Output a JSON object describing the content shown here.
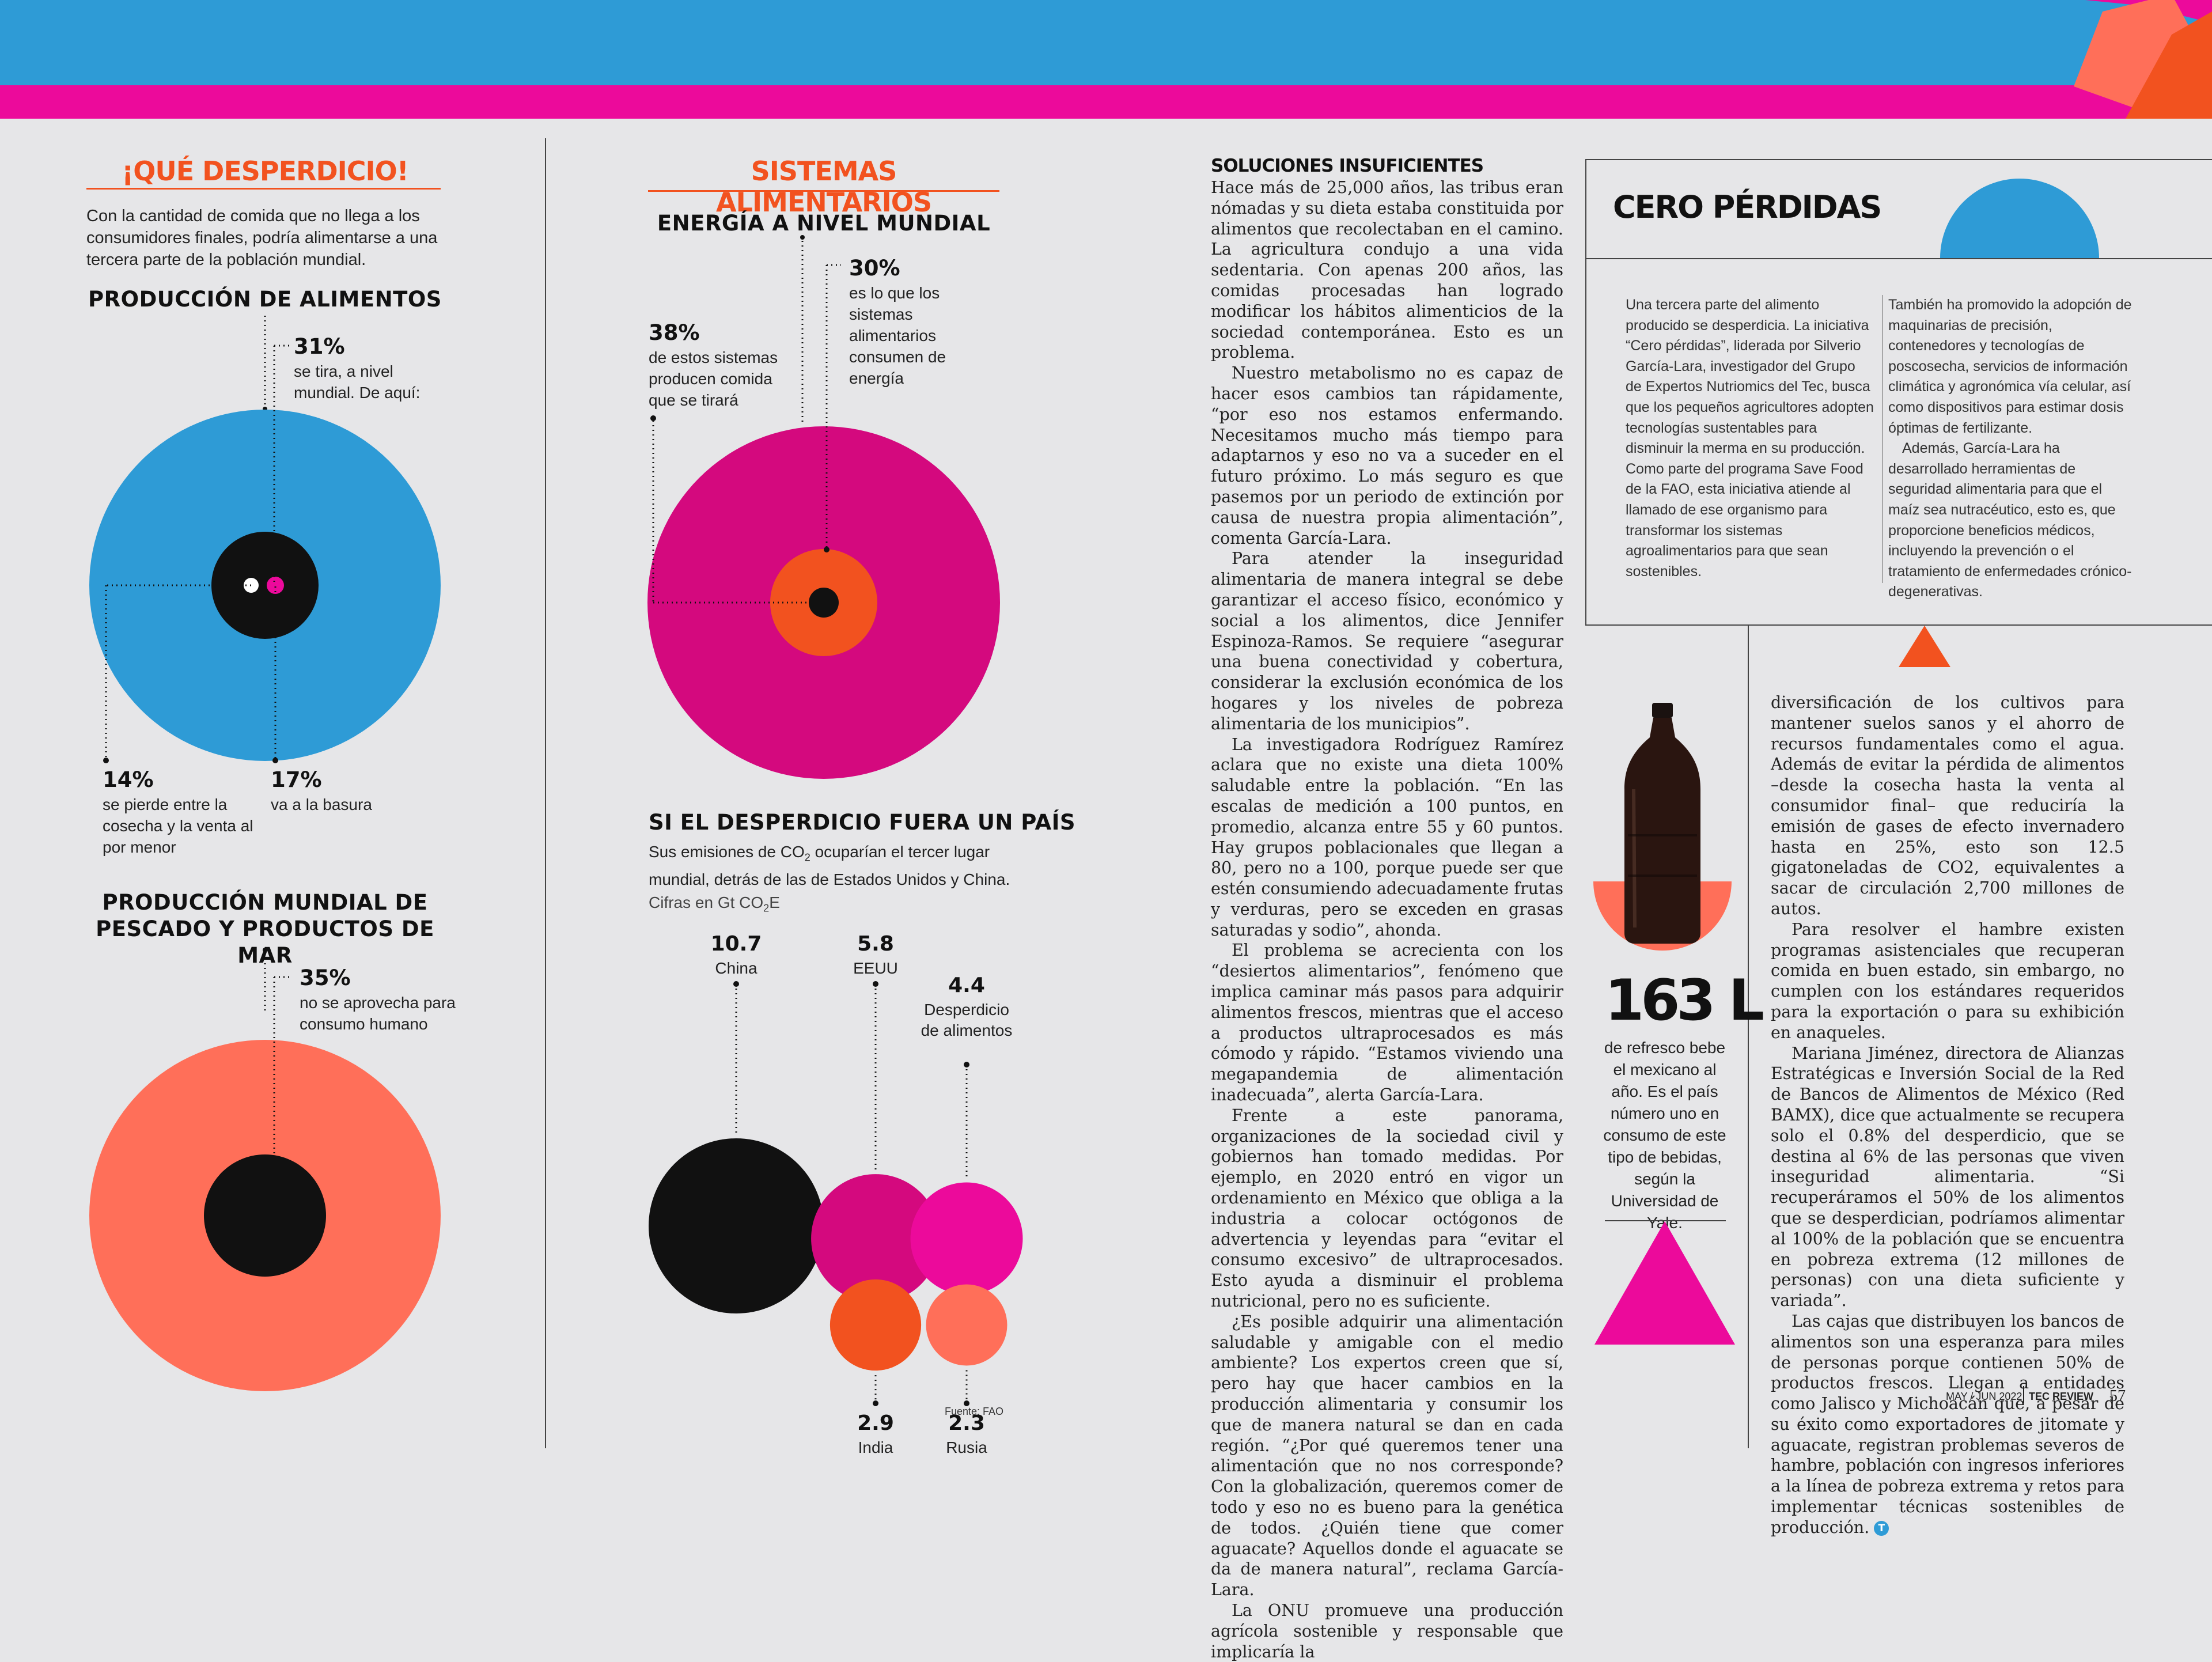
{
  "colors": {
    "blue": "#2e9bd6",
    "pink": "#ec0a9b",
    "orange": "#f2521f",
    "salmon": "#ff6f59",
    "black": "#111111"
  },
  "col1": {
    "title": "¡QUÉ DESPERDICIO!",
    "intro": "Con la cantidad de comida que no llega a los consumidores finales, podría alimentarse a una tercera parte de la población mundial.",
    "food": {
      "heading": "PRODUCCIÓN DE ALIMENTOS",
      "a_pct": "31%",
      "a_text": "se tira, a nivel mundial. De aquí:",
      "b_pct": "14%",
      "b_text": "se pierde entre la cosecha y la venta al por menor",
      "c_pct": "17%",
      "c_text": "va a la basura"
    },
    "fish": {
      "heading": "PRODUCCIÓN MUNDIAL DE PESCADO Y PRODUCTOS DE MAR",
      "pct": "35%",
      "text": "no se aprovecha para consumo humano"
    }
  },
  "col2": {
    "title": "SISTEMAS ALIMENTARIOS",
    "energy": {
      "heading": "ENERGÍA A NIVEL MUNDIAL",
      "a_pct": "30%",
      "a_text": "es lo que los sistemas alimentarios consumen de energía",
      "b_pct": "38%",
      "b_text": "de estos sistemas producen comida que se tirará"
    },
    "country": {
      "heading": "SI EL DESPERDICIO FUERA UN PAÍS",
      "sub_a": "Sus emisiones de CO",
      "sub_sub": "2",
      "sub_b": " ocuparían el tercer lugar mundial, detrás de las de Estados Unidos y China.",
      "unit_a": "Cifras en Gt CO",
      "unit_sub": "2",
      "unit_b": "E",
      "source": "Fuente: FAO"
    }
  },
  "chart_data": {
    "type": "bubble",
    "unit": "Gt CO2E",
    "categories": [
      "China",
      "EEUU",
      "Desperdicio de alimentos",
      "India",
      "Rusia"
    ],
    "values": [
      10.7,
      5.8,
      4.4,
      2.9,
      2.3
    ],
    "labels": [
      "10.7",
      "5.8",
      "4.4",
      "2.9",
      "2.3"
    ],
    "colors": [
      "#111111",
      "#d4097e",
      "#ec0a9b",
      "#f2521f",
      "#ff6f59"
    ]
  },
  "col3": {
    "title": "SOLUCIONES INSUFICIENTES",
    "paragraphs": [
      "Hace más de 25,000 años, las tribus eran nómadas y su dieta estaba constituida por alimentos que recolectaban en el camino. La agricultura condujo a una vida sedentaria. Con apenas 200 años, las comidas procesadas han logrado modificar los hábitos alimenticios de la sociedad contemporánea. Esto es un problema.",
      "Nuestro metabolismo no es capaz de hacer esos cambios tan rápidamente, “por eso nos estamos enfermando. Necesitamos mucho más tiempo para adaptarnos y eso no va a suceder en el futuro próximo. Lo más seguro es que pasemos por un periodo de extinción por causa de nuestra propia alimentación”, comenta García-Lara.",
      "Para atender la inseguridad alimentaria de manera integral se debe garantizar el acceso físico, económico y social a los alimentos, dice Jennifer Espinoza-Ramos. Se requiere “asegurar una buena conectividad y cobertura, considerar la exclusión económica de los hogares y los niveles de pobreza alimentaria de los municipios”.",
      "La investigadora Rodríguez Ramírez aclara que no existe una dieta 100% saludable entre la población. “En las escalas de medición a 100 puntos, en promedio, alcanza entre 55 y 60 puntos. Hay grupos poblacionales que llegan a 80, pero no a 100, porque puede ser que estén consumiendo adecuadamente frutas y verduras, pero se exceden en grasas saturadas y sodio”, ahonda.",
      "El problema se acrecienta con los “desiertos alimentarios”, fenómeno que implica caminar más pasos para adquirir alimentos frescos, mientras que el acceso a productos ultraprocesados es más cómodo y rápido. “Estamos viviendo una megapandemia de alimentación inadecuada”, alerta García-Lara.",
      "Frente a este panorama, organizaciones de la sociedad civil y gobiernos han tomado medidas. Por ejemplo, en 2020 entró en vigor un ordenamiento en México que obliga a la industria a colocar octógonos de advertencia y leyendas para “evitar el consumo excesivo” de ultraprocesados. Esto ayuda a disminuir el problema nutricional, pero no es suficiente.",
      "¿Es posible adquirir una alimentación saludable y amigable con el medio ambiente? Los expertos creen que sí, pero hay que hacer cambios en la producción alimentaria y consumir los que de manera natural se dan en cada región. “¿Por qué queremos tener una alimentación que no nos corresponde? Con la globalización, queremos comer de todo y eso no es bueno para la genética de todos. ¿Quién tiene que comer aguacate? Aquellos donde el aguacate se da de manera natural”, reclama García-Lara.",
      "La ONU promueve una producción agrícola sostenible y responsable que implicaría la"
    ]
  },
  "box": {
    "title": "CERO PÉRDIDAS",
    "left_text": "Una tercera parte del alimento producido se desperdicia. La iniciativa “Cero pérdidas”, liderada por Silverio García-Lara, investigador del Grupo de Expertos Nutriomics del Tec, busca que los pequeños agricultores adopten tecnologías sustentables para disminuir la merma en su producción. Como parte del programa Save Food de la FAO, esta iniciativa atiende al llamado de ese organismo para transformar los sistemas agroalimentarios para que sean sostenibles.",
    "right_p1": "También ha promovido la adopción de maquinarias de precisión, contenedores y tecnologías de poscosecha, servicios de información climática y agronómica vía celular, así como dispositivos para estimar dosis óptimas de fertilizante.",
    "right_p2": "Además, García-Lara ha desarrollado herramientas de seguridad alimentaria para que el maíz sea nutracéutico, esto es, que proporcione beneficios médicos, incluyendo la prevención o el tratamiento de enfermedades crónico-degenerativas."
  },
  "stat": {
    "value": "163 L",
    "text": "de refresco bebe el mexicano al año. Es el país número uno en consumo de este tipo de bebidas, según la Universidad de Yale."
  },
  "col4": {
    "paragraphs": [
      "diversificación de los cultivos para mantener suelos sanos y el ahorro de recursos fundamentales como el agua. Además de evitar la pérdida de alimentos –desde la cosecha hasta la venta al consumidor final– que reduciría la emisión de gases de efecto invernadero hasta en 25%, esto son 12.5 gigatoneladas de CO2, equivalentes a sacar de circulación 2,700 millones de autos.",
      "Para resolver el hambre existen programas asistenciales que recuperan comida en buen estado, sin embargo, no cumplen con los estándares requeridos para la exportación o para su exhibición en anaqueles.",
      "Mariana Jiménez, directora de Alianzas Estratégicas e Inversión Social de la Red de Bancos de Alimentos de México (Red BAMX), dice que actualmente se recupera solo el 0.8% del desperdicio, que se destina al 6% de las personas que viven inseguridad alimentaria. “Si recuperáramos el 50% de los alimentos que se desperdician, podríamos alimentar al 100% de la población que se encuentra en pobreza extrema (12 millones de personas) con una dieta suficiente y variada”.",
      "Las cajas que distribuyen los bancos de alimentos son una esperanza para miles de personas porque contienen 50% de productos frescos. Llegan a entidades como Jalisco y Michoacán que, a pesar de su éxito como exportadores de jitomate y aguacate, registran problemas severos de hambre, población con ingresos inferiores a la línea de pobreza extrema y retos para implementar técnicas sostenibles de producción."
    ],
    "end_mark": "T"
  },
  "footer": {
    "date": "MAY / JUN 2022",
    "brand": "TEC REVIEW",
    "page": "57"
  }
}
